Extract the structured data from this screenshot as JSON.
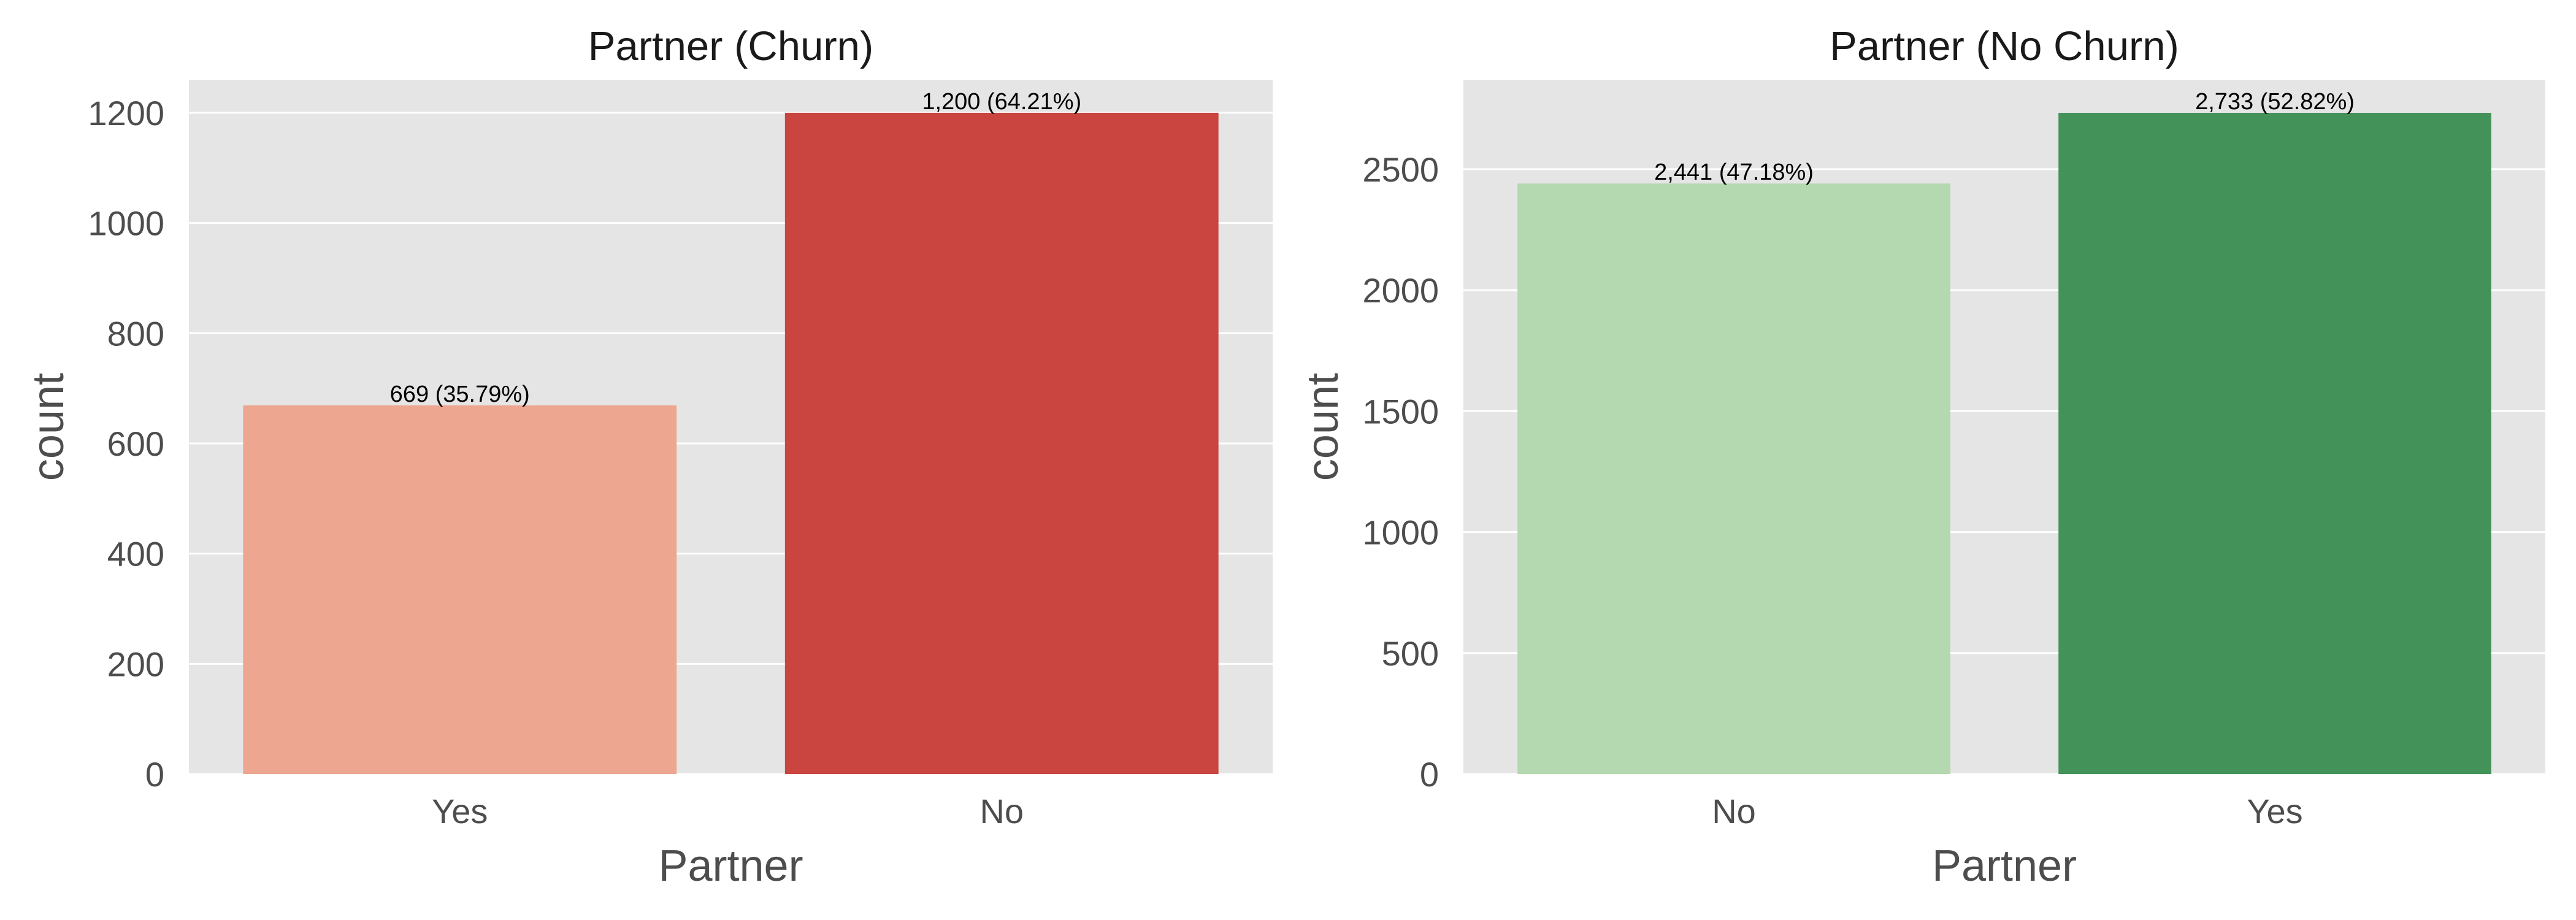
{
  "chart_data": [
    {
      "type": "bar",
      "title": "Partner (Churn)",
      "xlabel": "Partner",
      "ylabel": "count",
      "categories": [
        "Yes",
        "No"
      ],
      "values": [
        669,
        1200
      ],
      "bar_labels": [
        "669 (35.79%)",
        "1,200 (64.21%)"
      ],
      "colors": [
        "#eda690",
        "#cb4540"
      ],
      "ylim": [
        0,
        1260
      ],
      "yticks": [
        0,
        200,
        400,
        600,
        800,
        1000,
        1200
      ],
      "grid": true,
      "background": "#e5e5e5"
    },
    {
      "type": "bar",
      "title": "Partner (No Churn)",
      "xlabel": "Partner",
      "ylabel": "count",
      "categories": [
        "No",
        "Yes"
      ],
      "values": [
        2441,
        2733
      ],
      "bar_labels": [
        "2,441 (47.18%)",
        "2,733 (52.82%)"
      ],
      "colors": [
        "#b4d8b0",
        "#43925a"
      ],
      "ylim": [
        0,
        2870
      ],
      "yticks": [
        0,
        500,
        1000,
        1500,
        2000,
        2500
      ],
      "grid": true,
      "background": "#e5e5e5"
    }
  ]
}
